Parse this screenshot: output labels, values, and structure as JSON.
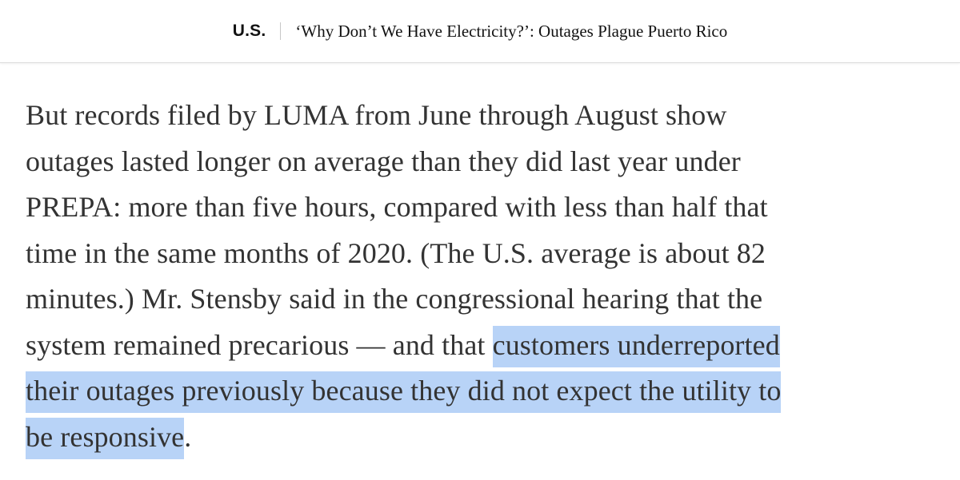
{
  "header": {
    "section_label": "U.S.",
    "headline": "‘Why Don’t We Have Electricity?’: Outages Plague Puerto Rico"
  },
  "article": {
    "lines": [
      {
        "text": "But records filed by LUMA from June through August show"
      },
      {
        "text": "outages lasted longer on average than they did last year under"
      },
      {
        "text": "PREPA: more than five hours, compared with less than half that"
      },
      {
        "text": "time in the same months of 2020. (The U.S. average is about 82"
      },
      {
        "text": "minutes.) Mr. Stensby said in the congressional hearing that the"
      },
      {
        "text": "system remained precarious — and that ",
        "highlight": "customers underreported"
      },
      {
        "highlight": "their outages previously because they did not expect the utility to"
      },
      {
        "highlight": "be responsive",
        "after": "."
      }
    ]
  },
  "colors": {
    "selection_highlight": "#b8d3f7",
    "body_text": "#333333"
  }
}
